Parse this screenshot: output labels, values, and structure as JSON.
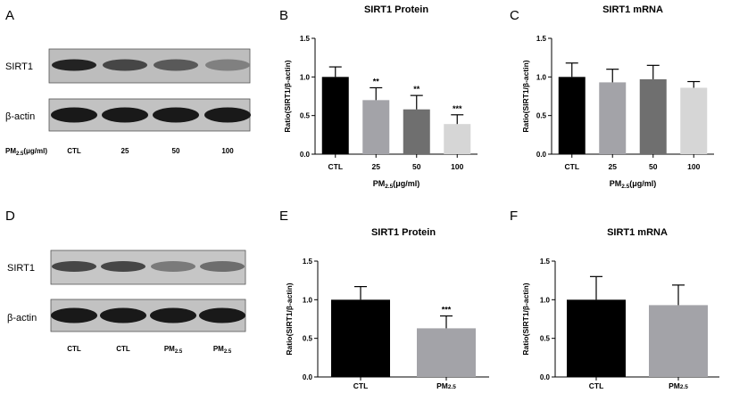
{
  "panels": {
    "A": {
      "letter": "A",
      "row_labels": [
        "SIRT1",
        "β-actin"
      ],
      "lane_header": {
        "main": "PM",
        "sub": "2.5",
        "tail": "(μg/ml)"
      },
      "lanes": [
        "CTL",
        "25",
        "50",
        "100"
      ],
      "band_intensity": {
        "SIRT1": [
          0.9,
          0.72,
          0.62,
          0.42
        ],
        "beta_actin": [
          0.95,
          0.95,
          0.95,
          0.95
        ]
      }
    },
    "D": {
      "letter": "D",
      "row_labels": [
        "SIRT1",
        "β-actin"
      ],
      "lanes": [
        {
          "main": "CTL",
          "sub": ""
        },
        {
          "main": "CTL",
          "sub": ""
        },
        {
          "main": "PM",
          "sub": "2.5"
        },
        {
          "main": "PM",
          "sub": "2.5"
        }
      ],
      "band_intensity": {
        "SIRT1": [
          0.72,
          0.72,
          0.45,
          0.52
        ],
        "beta_actin": [
          0.95,
          0.95,
          0.95,
          0.95
        ]
      }
    }
  },
  "chart_data": [
    {
      "panel": "B",
      "type": "bar",
      "title": "SIRT1 Protein",
      "ylabel": "Ratio(SIRT1/β-actin)",
      "xlabel": {
        "main": "PM",
        "sub": "2.5",
        "tail": "(μg/ml)"
      },
      "categories": [
        {
          "main": "CTL",
          "sub": ""
        },
        {
          "main": "25",
          "sub": ""
        },
        {
          "main": "50",
          "sub": ""
        },
        {
          "main": "100",
          "sub": ""
        }
      ],
      "values": [
        1.0,
        0.7,
        0.58,
        0.39
      ],
      "errors": [
        0.13,
        0.16,
        0.18,
        0.12
      ],
      "significance": [
        "",
        "**",
        "**",
        "***"
      ],
      "colors": [
        "#000000",
        "#a3a3a8",
        "#6f6f6f",
        "#d6d6d6"
      ],
      "ylim": [
        0,
        1.5
      ],
      "yticks": [
        "0.0",
        "0.5",
        "1.0",
        "1.5"
      ]
    },
    {
      "panel": "C",
      "type": "bar",
      "title": "SIRT1 mRNA",
      "ylabel": "Ratio(SIRT1/β-actin)",
      "xlabel": {
        "main": "PM",
        "sub": "2.5",
        "tail": "(μg/ml)"
      },
      "categories": [
        {
          "main": "CTL",
          "sub": ""
        },
        {
          "main": "25",
          "sub": ""
        },
        {
          "main": "50",
          "sub": ""
        },
        {
          "main": "100",
          "sub": ""
        }
      ],
      "values": [
        1.0,
        0.93,
        0.97,
        0.86
      ],
      "errors": [
        0.18,
        0.17,
        0.18,
        0.08
      ],
      "significance": [
        "",
        "",
        "",
        ""
      ],
      "colors": [
        "#000000",
        "#a3a3a8",
        "#6f6f6f",
        "#d6d6d6"
      ],
      "ylim": [
        0,
        1.5
      ],
      "yticks": [
        "0.0",
        "0.5",
        "1.0",
        "1.5"
      ]
    },
    {
      "panel": "E",
      "type": "bar",
      "title": "SIRT1 Protein",
      "ylabel": "Ratio(SIRT1/β-actin)",
      "xlabel": {
        "main": "",
        "sub": "",
        "tail": ""
      },
      "categories": [
        {
          "main": "CTL",
          "sub": ""
        },
        {
          "main": "PM",
          "sub": "2.5"
        }
      ],
      "values": [
        1.0,
        0.63
      ],
      "errors": [
        0.17,
        0.16
      ],
      "significance": [
        "",
        "***"
      ],
      "colors": [
        "#000000",
        "#a3a3a8"
      ],
      "ylim": [
        0,
        1.5
      ],
      "yticks": [
        "0.0",
        "0.5",
        "1.0",
        "1.5"
      ]
    },
    {
      "panel": "F",
      "type": "bar",
      "title": "SIRT1 mRNA",
      "ylabel": "Ratio(SIRT1/β-actin)",
      "xlabel": {
        "main": "",
        "sub": "",
        "tail": ""
      },
      "categories": [
        {
          "main": "CTL",
          "sub": ""
        },
        {
          "main": "PM",
          "sub": "2.5"
        }
      ],
      "values": [
        1.0,
        0.93
      ],
      "errors": [
        0.3,
        0.26
      ],
      "significance": [
        "",
        ""
      ],
      "colors": [
        "#000000",
        "#a3a3a8"
      ],
      "ylim": [
        0,
        1.5
      ],
      "yticks": [
        "0.0",
        "0.5",
        "1.0",
        "1.5"
      ]
    }
  ]
}
